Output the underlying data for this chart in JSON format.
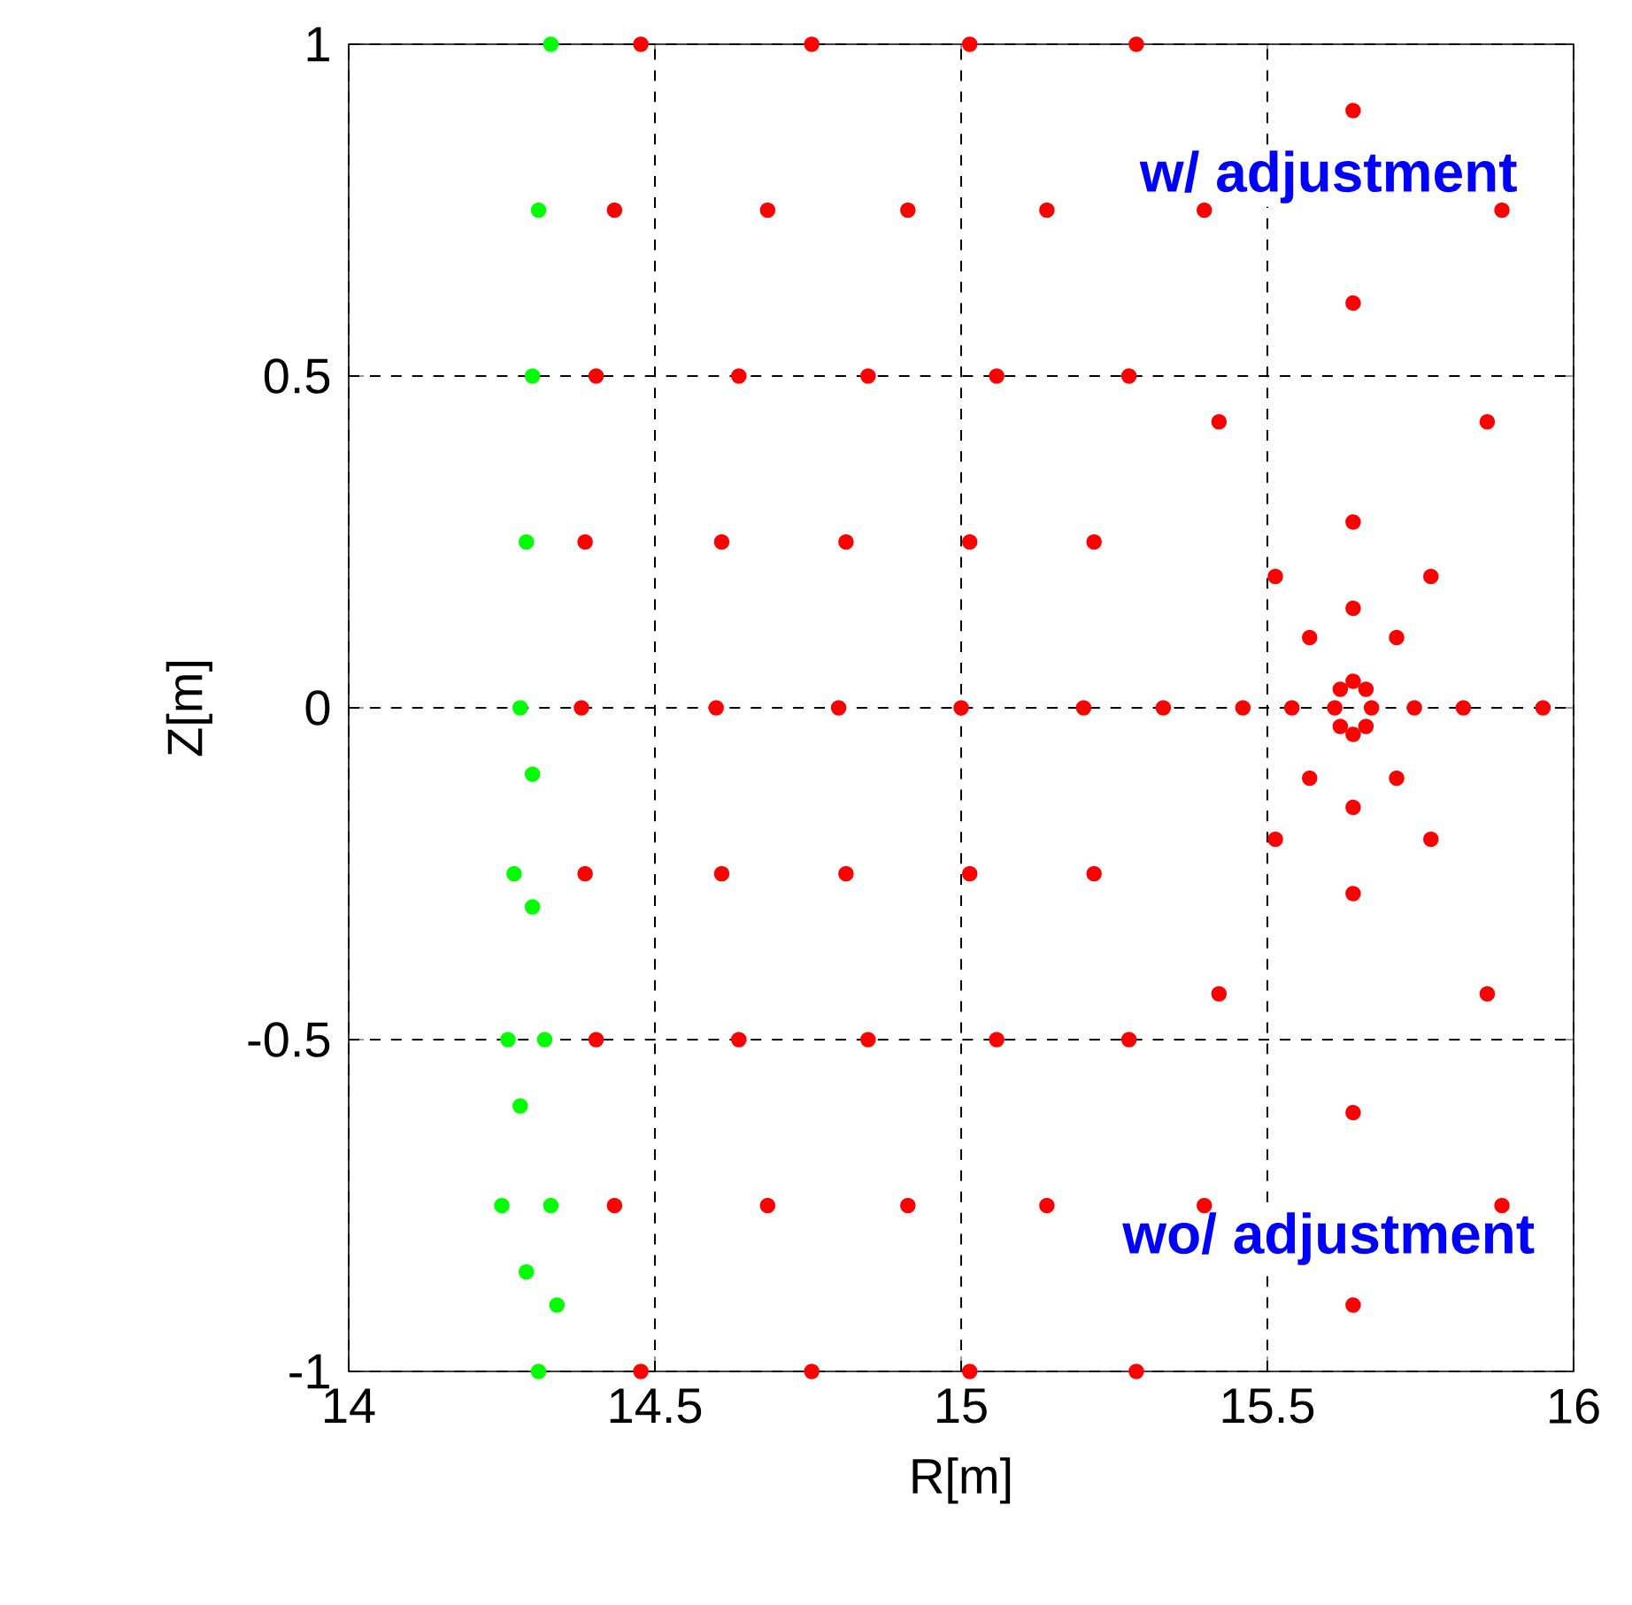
{
  "chart_data": {
    "type": "scatter",
    "xlabel": "R[m]",
    "ylabel": "Z[m]",
    "xlim": [
      14,
      16
    ],
    "ylim": [
      -1,
      1
    ],
    "xticks": [
      14,
      14.5,
      15,
      15.5,
      16
    ],
    "yticks": [
      -1,
      -0.5,
      0,
      0.5,
      1
    ],
    "grid": true,
    "annotations": [
      "w/ adjustment",
      "wo/ adjustment"
    ],
    "series": [
      {
        "color": "#ff0000",
        "x": [
          15.61,
          15.64,
          15.67,
          15.64,
          15.619,
          15.661,
          15.619,
          15.661,
          15.54,
          15.74,
          15.64,
          15.64,
          15.569,
          15.569,
          15.711,
          15.711,
          15.46,
          15.82,
          15.64,
          15.64,
          15.513,
          15.513,
          15.767,
          15.767,
          15.33,
          15.95,
          15.64,
          15.64,
          15.421,
          15.421,
          15.859,
          15.859,
          15.2,
          15.217,
          15.217,
          15.274,
          15.274,
          15.397,
          15.397,
          15.883,
          15.883,
          15.64,
          15.64,
          15.0,
          15.014,
          15.014,
          15.058,
          15.058,
          15.14,
          15.14,
          15.286,
          15.286,
          14.8,
          14.812,
          14.812,
          14.848,
          14.848,
          14.913,
          14.913,
          15.014,
          15.014,
          14.6,
          14.609,
          14.609,
          14.637,
          14.637,
          14.684,
          14.684,
          14.756,
          14.756,
          14.38,
          14.386,
          14.386,
          14.404,
          14.404,
          14.434,
          14.434,
          14.477,
          14.477
        ],
        "values": [
          0,
          0.04,
          0,
          -0.04,
          0.028,
          0.028,
          -0.028,
          -0.028,
          0,
          0,
          0.15,
          -0.15,
          0.106,
          -0.106,
          0.106,
          -0.106,
          0,
          0,
          0.28,
          -0.28,
          0.198,
          -0.198,
          0.198,
          -0.198,
          0,
          0,
          0.61,
          -0.61,
          0.431,
          -0.431,
          0.431,
          -0.431,
          0,
          0.25,
          -0.25,
          0.5,
          -0.5,
          0.75,
          -0.75,
          0.75,
          -0.75,
          0.9,
          -0.9,
          0,
          0.25,
          -0.25,
          0.5,
          -0.5,
          0.75,
          -0.75,
          1,
          -1,
          0,
          0.25,
          -0.25,
          0.5,
          -0.5,
          0.75,
          -0.75,
          1,
          -1,
          0,
          0.25,
          -0.25,
          0.5,
          -0.5,
          0.75,
          -0.75,
          1,
          -1,
          0,
          0.25,
          -0.25,
          0.5,
          -0.5,
          0.75,
          -0.75,
          1,
          -1
        ]
      },
      {
        "color": "#00ff00",
        "x": [
          14.33,
          14.31,
          14.3,
          14.29,
          14.28,
          14.27,
          14.3,
          14.26,
          14.32,
          14.28,
          14.25,
          14.33,
          14.29,
          14.31,
          14.34,
          14.3
        ],
        "values": [
          1,
          0.75,
          0.5,
          0.25,
          0,
          -0.25,
          -0.3,
          -0.5,
          -0.5,
          -0.6,
          -0.75,
          -0.75,
          -0.85,
          -1,
          -0.9,
          -0.1
        ]
      }
    ]
  }
}
